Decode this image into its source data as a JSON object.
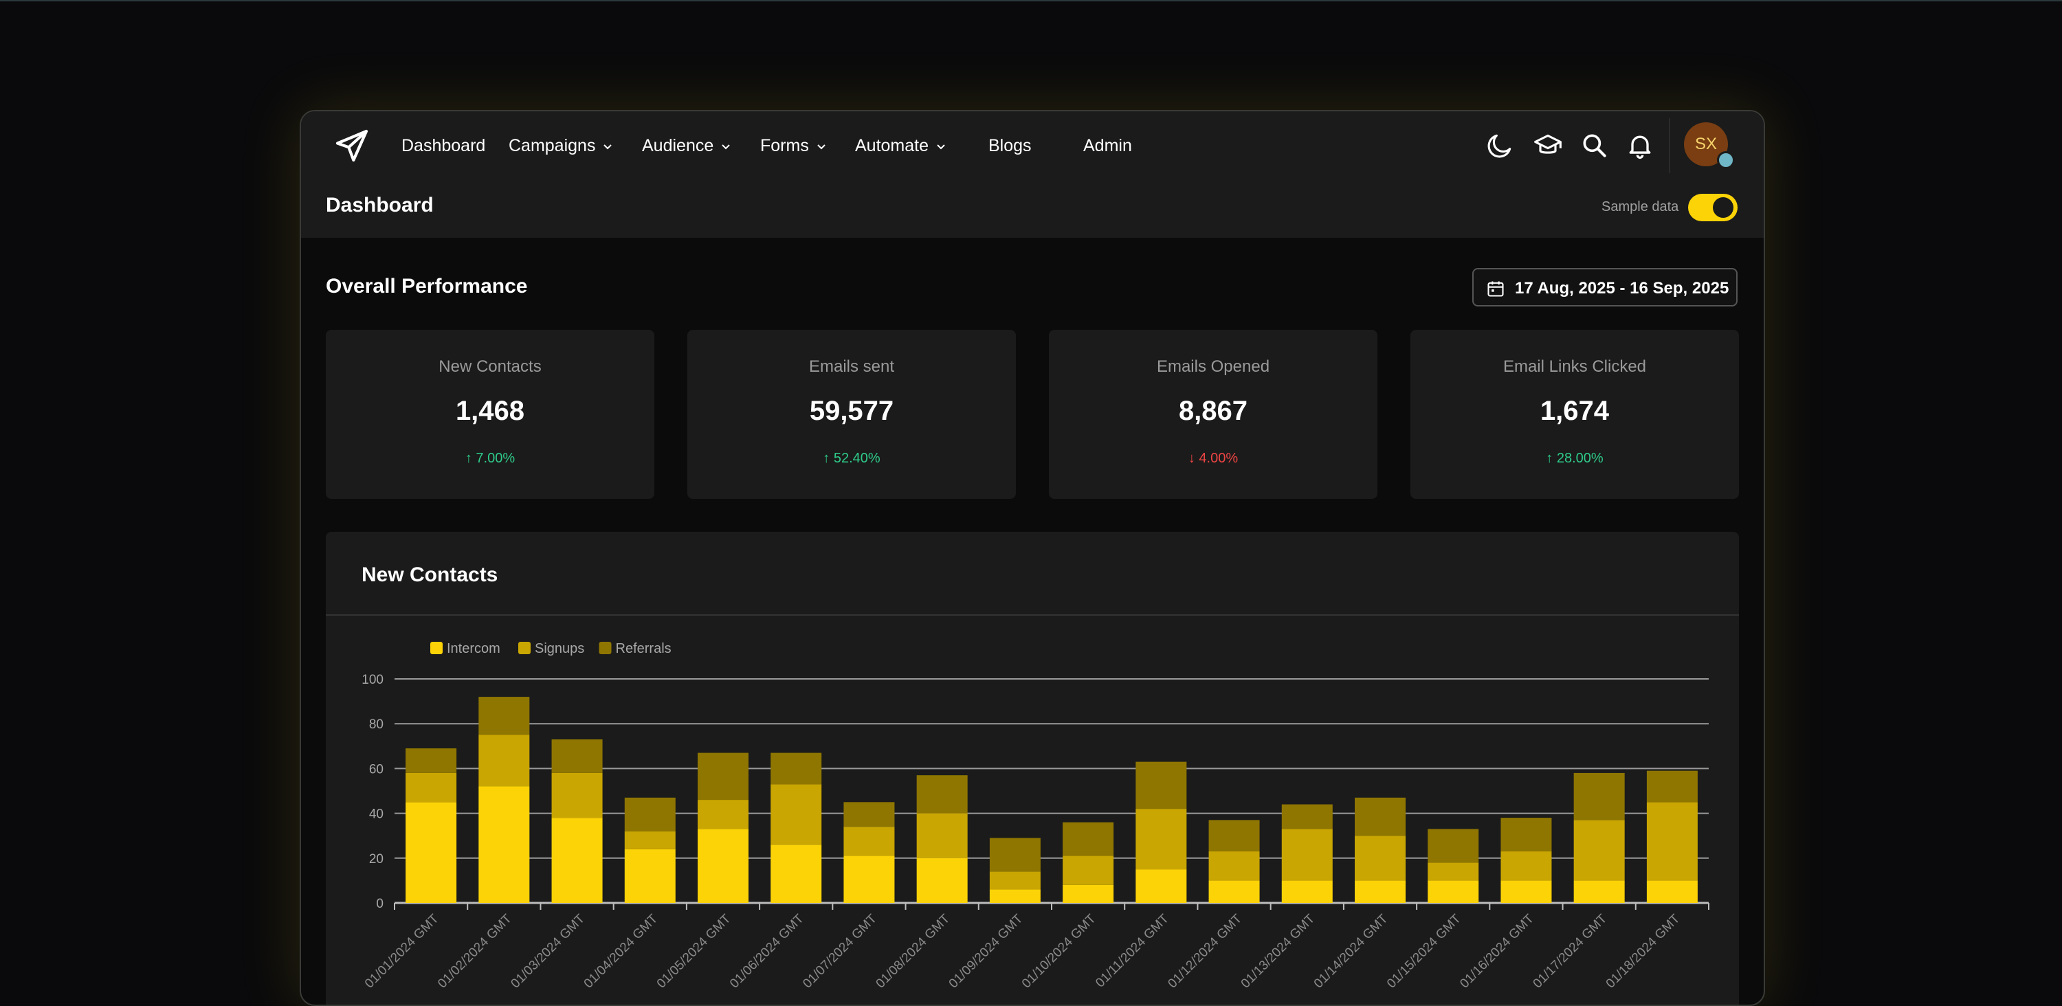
{
  "nav": {
    "items": [
      {
        "label": "Dashboard",
        "dropdown": false
      },
      {
        "label": "Campaigns",
        "dropdown": true
      },
      {
        "label": "Audience",
        "dropdown": true
      },
      {
        "label": "Forms",
        "dropdown": true
      },
      {
        "label": "Automate",
        "dropdown": true
      },
      {
        "label": "Blogs",
        "dropdown": false
      },
      {
        "label": "Admin",
        "dropdown": false
      }
    ],
    "icons": [
      "moon-icon",
      "graduation-cap-icon",
      "search-icon",
      "bell-icon"
    ],
    "avatar_initials": "SX"
  },
  "header": {
    "title": "Dashboard",
    "sample_data_label": "Sample data",
    "sample_data_on": true
  },
  "performance": {
    "title": "Overall Performance",
    "date_range": "17 Aug, 2025 - 16 Sep, 2025",
    "cards": [
      {
        "label": "New Contacts",
        "value": "1,468",
        "change": "7.00%",
        "direction": "up"
      },
      {
        "label": "Emails sent",
        "value": "59,577",
        "change": "52.40%",
        "direction": "up"
      },
      {
        "label": "Emails Opened",
        "value": "8,867",
        "change": "4.00%",
        "direction": "down"
      },
      {
        "label": "Email Links Clicked",
        "value": "1,674",
        "change": "28.00%",
        "direction": "up"
      }
    ]
  },
  "colors": {
    "accent": "#fcd307",
    "intercom": "#fcd307",
    "signups": "#c9a602",
    "referrals": "#8f7600",
    "up": "#2ecc8a",
    "down": "#ef4444"
  },
  "chart_data": {
    "type": "bar",
    "stacked": true,
    "title": "New Contacts",
    "legend_position": "top-left",
    "grid": true,
    "ylim": [
      0,
      100
    ],
    "yticks": [
      0,
      20,
      40,
      60,
      80,
      100
    ],
    "categories": [
      "01/01/2024 GMT",
      "01/02/2024 GMT",
      "01/03/2024 GMT",
      "01/04/2024 GMT",
      "01/05/2024 GMT",
      "01/06/2024 GMT",
      "01/07/2024 GMT",
      "01/08/2024 GMT",
      "01/09/2024 GMT",
      "01/10/2024 GMT",
      "01/11/2024 GMT",
      "01/12/2024 GMT",
      "01/13/2024 GMT",
      "01/14/2024 GMT",
      "01/15/2024 GMT",
      "01/16/2024 GMT",
      "01/17/2024 GMT",
      "01/18/2024 GMT"
    ],
    "series": [
      {
        "name": "Intercom",
        "values": [
          45,
          52,
          38,
          24,
          33,
          26,
          21,
          20,
          6,
          8,
          15,
          10,
          10,
          10,
          10,
          10,
          10,
          10
        ]
      },
      {
        "name": "Signups",
        "values": [
          13,
          23,
          20,
          8,
          13,
          27,
          13,
          20,
          8,
          13,
          27,
          13,
          23,
          20,
          8,
          13,
          27,
          35
        ]
      },
      {
        "name": "Referrals",
        "values": [
          11,
          17,
          15,
          15,
          21,
          14,
          11,
          17,
          15,
          15,
          21,
          14,
          11,
          17,
          15,
          15,
          21,
          14
        ]
      }
    ]
  }
}
